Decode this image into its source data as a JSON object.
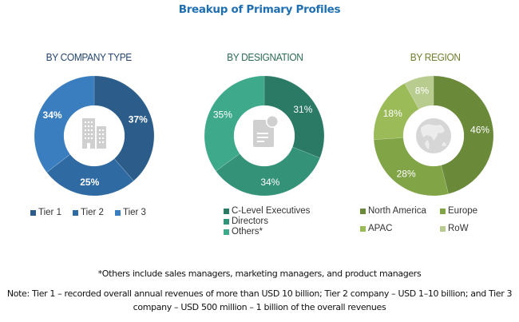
{
  "title": "Breakup of Primary Profiles",
  "chart_data": [
    {
      "type": "pie",
      "variant": "donut",
      "title": "BY COMPANY TYPE",
      "categories": [
        "Tier 1",
        "Tier 2",
        "Tier 3"
      ],
      "values": [
        37,
        25,
        34
      ],
      "labels": [
        "37%",
        "25%",
        "34%"
      ],
      "colors": [
        "#2b5c8a",
        "#2f6aa3",
        "#3a7ec0"
      ],
      "title_color": "#26456e",
      "center_icon": "building-icon",
      "legend_position": "bottom"
    },
    {
      "type": "pie",
      "variant": "donut",
      "title": "BY DESIGNATION",
      "categories": [
        "C-Level Executives",
        "Directors",
        "Others*"
      ],
      "values": [
        31,
        34,
        35
      ],
      "labels": [
        "31%",
        "34%",
        "35%"
      ],
      "colors": [
        "#2b7a66",
        "#339278",
        "#3fa98c"
      ],
      "title_color": "#2b6b55",
      "center_icon": "document-icon",
      "legend_position": "bottom"
    },
    {
      "type": "pie",
      "variant": "donut",
      "title": "BY REGION",
      "categories": [
        "North America",
        "Europe",
        "APAC",
        "RoW"
      ],
      "values": [
        46,
        28,
        18,
        8
      ],
      "labels": [
        "46%",
        "28%",
        "18%",
        "8%"
      ],
      "colors": [
        "#6a8a3a",
        "#81a446",
        "#9bbb59",
        "#b8cc8f"
      ],
      "title_color": "#6e7f2e",
      "center_icon": "globe-icon",
      "legend_position": "bottom"
    }
  ],
  "notes": {
    "others": "*Others include sales managers, marketing managers, and product managers",
    "tiers": "Note: Tier 1 – recorded overall annual revenues of more than USD 10 billion; Tier 2 company – USD 1–10 billion; and Tier 3 company – USD 500 million – 1 billion of the overall revenues"
  }
}
